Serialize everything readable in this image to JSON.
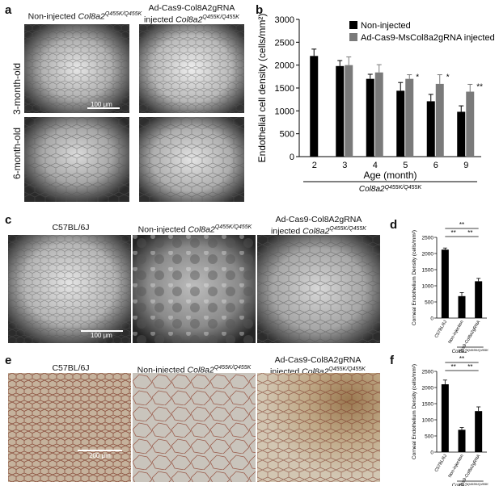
{
  "panel_a": {
    "label": "a",
    "col1_title_pre": "Non-injected ",
    "col1_title_gene": "Col8a2",
    "col1_title_sup": "Q455K/Q455K",
    "col2_title_line1": "Ad-Cas9-Col8A2gRNA",
    "col2_title_pre": "injected ",
    "col2_title_gene": "Col8a2",
    "col2_title_sup": "Q455K/Q455K",
    "row1_label": "3-month-old",
    "row2_label": "6-month-old",
    "scale_text": "100 μm"
  },
  "panel_b": {
    "label": "b"
  },
  "panel_c": {
    "label": "c",
    "col1_title": "C57BL/6J",
    "col2_title_pre": "Non-injected ",
    "col2_title_gene": "Col8a2",
    "col2_title_sup": "Q455K/Q455K",
    "col3_title_line1": "Ad-Cas9-Col8A2gRNA",
    "col3_title_pre": "injected ",
    "col3_title_gene": "Col8a2",
    "col3_title_sup": "Q455K/Q455K",
    "scale_text": "100 μm"
  },
  "panel_d": {
    "label": "d"
  },
  "panel_e": {
    "label": "e",
    "col1_title": "C57BL/6J",
    "col2_title_pre": "Non-injected ",
    "col2_title_gene": "Col8a2",
    "col2_title_sup": "Q455K/Q455K",
    "col3_title_line1": "Ad-Cas9-Col8A2gRNA",
    "col3_title_pre": "injected ",
    "col3_title_gene": "Col8a2",
    "col3_title_sup": "Q455K/Q455K",
    "scale_text": "200 μm"
  },
  "panel_f": {
    "label": "f"
  },
  "chart_data": [
    {
      "id": "b",
      "type": "bar",
      "title": "",
      "ylabel": "Endothelial cell density (cells/mm²)",
      "xlabel": "Age (month)",
      "x_group_label": "Col8a2",
      "x_group_sup": "Q455K/Q455K",
      "ylim": [
        0,
        3000
      ],
      "yticks": [
        "0",
        "500",
        "1000",
        "1500",
        "2000",
        "2500",
        "3000"
      ],
      "categories": [
        "2",
        "3",
        "4",
        "5",
        "6",
        "9"
      ],
      "series": [
        {
          "name": "Non-injected",
          "color": "#000000",
          "values": [
            2200,
            1980,
            1700,
            1440,
            1210,
            980
          ],
          "errors": [
            150,
            120,
            100,
            180,
            150,
            130
          ]
        },
        {
          "name": "Ad-Cas9-MsCol8a2gRNA injected",
          "color": "#7a7a7a",
          "values": [
            null,
            2000,
            1840,
            1700,
            1590,
            1420
          ],
          "errors": [
            null,
            180,
            170,
            90,
            200,
            160
          ]
        }
      ],
      "annotations": [
        "",
        "",
        "",
        "*",
        "*",
        "**"
      ],
      "legend_position": "top-right",
      "grid": false
    },
    {
      "id": "d",
      "type": "bar",
      "ylabel": "Corneal Endothelium Density (cells/mm²)",
      "ylim": [
        0,
        2500
      ],
      "yticks": [
        "0",
        "500",
        "1000",
        "1500",
        "2000",
        "2500"
      ],
      "categories": [
        "C57BL/6J",
        "Non-injection",
        "Ad-Cas9-Col8a2gRNA"
      ],
      "x_group_label": "Col8a2",
      "x_group_sup": "Q455K/Q455K",
      "values": [
        2120,
        680,
        1140
      ],
      "errors": [
        50,
        110,
        90
      ],
      "color": "#000000",
      "significance": [
        "**",
        "**",
        "**"
      ],
      "grid": false
    },
    {
      "id": "f",
      "type": "bar",
      "ylabel": "Corneal Endothelium Density (cells/mm²)",
      "ylim": [
        0,
        2500
      ],
      "yticks": [
        "0",
        "500",
        "1000",
        "1500",
        "2000",
        "2500"
      ],
      "categories": [
        "C57BL/6J",
        "Non-injection",
        "Ad-Cas9-Col8a2gRNA"
      ],
      "x_group_label": "Col8a2",
      "x_group_sup": "Q455K/Q455K",
      "values": [
        2100,
        690,
        1270
      ],
      "errors": [
        130,
        70,
        130
      ],
      "color": "#000000",
      "significance": [
        "**",
        "**",
        "**"
      ],
      "grid": false
    }
  ],
  "colors": {
    "micro_bg": "#2a2a2a",
    "micro_bright": "#d8d8d8",
    "histo_light": "#c8b8a4",
    "histo_line": "#8a3a28"
  }
}
